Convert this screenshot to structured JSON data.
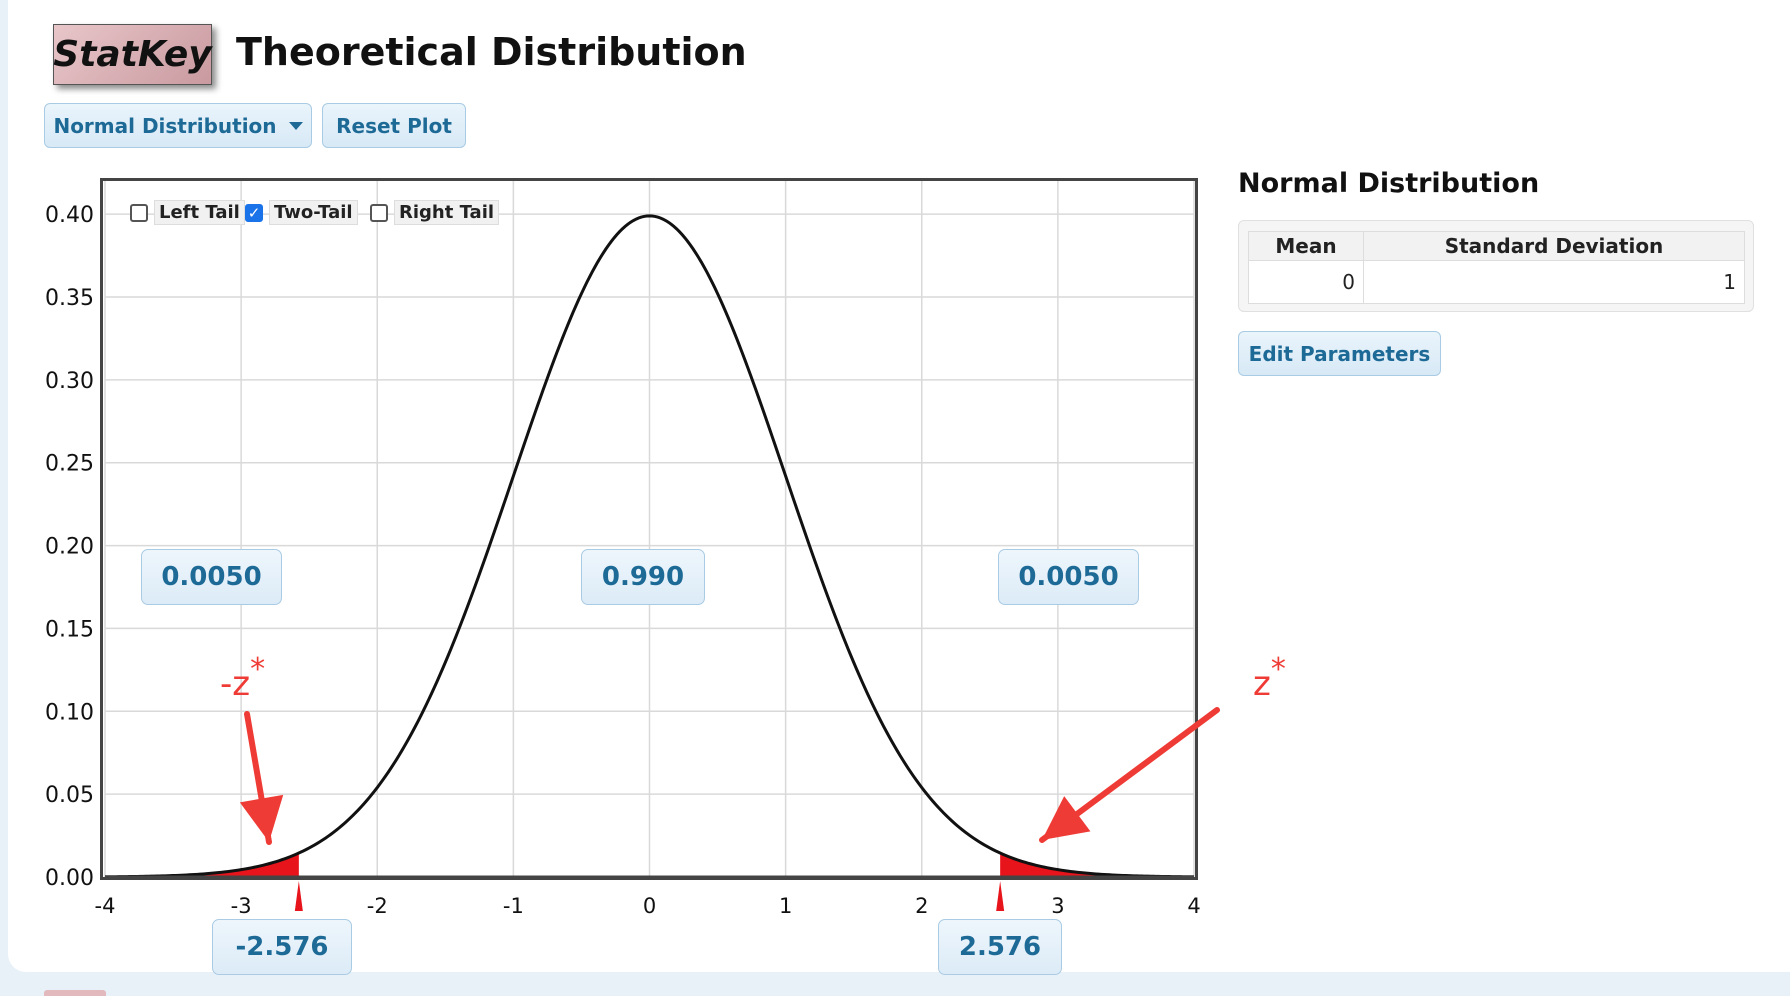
{
  "app": {
    "logo_text": "StatKey",
    "title": "Theoretical Distribution"
  },
  "toolbar": {
    "distribution_select": "Normal Distribution",
    "reset_label": "Reset Plot"
  },
  "tail_options": [
    {
      "label": "Left Tail",
      "checked": false
    },
    {
      "label": "Two-Tail",
      "checked": true
    },
    {
      "label": "Right Tail",
      "checked": false
    }
  ],
  "sidebar": {
    "title": "Normal Distribution",
    "columns": [
      "Mean",
      "Standard Deviation"
    ],
    "mean": "0",
    "sd": "1",
    "edit_label": "Edit Parameters"
  },
  "areas": {
    "left": "0.0050",
    "middle": "0.990",
    "right": "0.0050"
  },
  "cutoffs": {
    "left": "-2.576",
    "right": "2.576"
  },
  "annotations": {
    "neg_label": "-z",
    "pos_label": "z",
    "star": "*",
    "color": "#ef3b35"
  },
  "footer_text": "",
  "chart_data": {
    "type": "line",
    "title": "",
    "xlabel": "",
    "ylabel": "",
    "xlim": [
      -4,
      4
    ],
    "ylim": [
      0,
      0.42
    ],
    "x_ticks": [
      -4,
      -3,
      -2,
      -1,
      0,
      1,
      2,
      3,
      4
    ],
    "y_ticks": [
      "0.00",
      "0.05",
      "0.10",
      "0.15",
      "0.20",
      "0.25",
      "0.30",
      "0.35",
      "0.40"
    ],
    "series": [
      {
        "distribution": "normal",
        "mean": 0,
        "sd": 1
      }
    ],
    "shaded_regions": [
      {
        "from": -4,
        "to": -2.576,
        "color": "#e8141c"
      },
      {
        "from": 2.576,
        "to": 4,
        "color": "#e8141c"
      }
    ],
    "grid": true
  }
}
